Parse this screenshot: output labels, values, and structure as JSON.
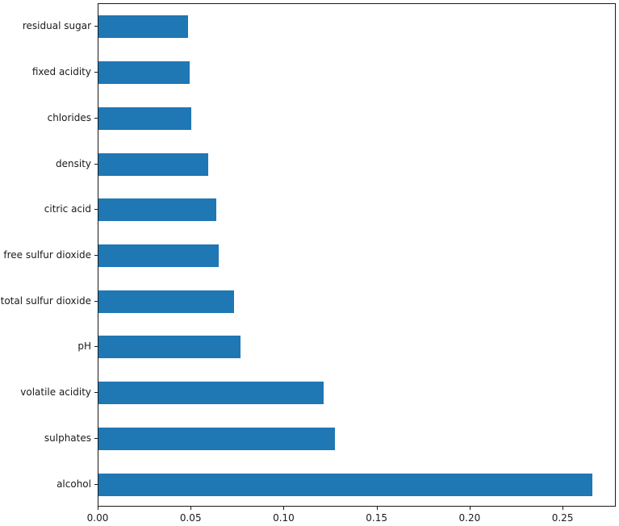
{
  "chart_data": {
    "type": "bar",
    "orientation": "horizontal",
    "title": "",
    "xlabel": "",
    "ylabel": "",
    "categories_top_to_bottom": [
      "residual sugar",
      "fixed acidity",
      "chlorides",
      "density",
      "citric acid",
      "free sulfur dioxide",
      "total sulfur dioxide",
      "pH",
      "volatile acidity",
      "sulphates",
      "alcohol"
    ],
    "values_top_to_bottom": [
      0.048,
      0.049,
      0.05,
      0.059,
      0.0635,
      0.0645,
      0.073,
      0.0765,
      0.121,
      0.127,
      0.2655
    ],
    "x_tick_labels": [
      "0.00",
      "0.05",
      "0.10",
      "0.15",
      "0.20",
      "0.25"
    ],
    "x_tick_values": [
      0.0,
      0.05,
      0.1,
      0.15,
      0.2,
      0.25
    ],
    "xlim": [
      0.0,
      0.2786
    ],
    "bar_color": "#1f77b4",
    "background_color": "#ffffff",
    "spine_color": "#1a1a1a",
    "grid": false,
    "legend": null
  }
}
